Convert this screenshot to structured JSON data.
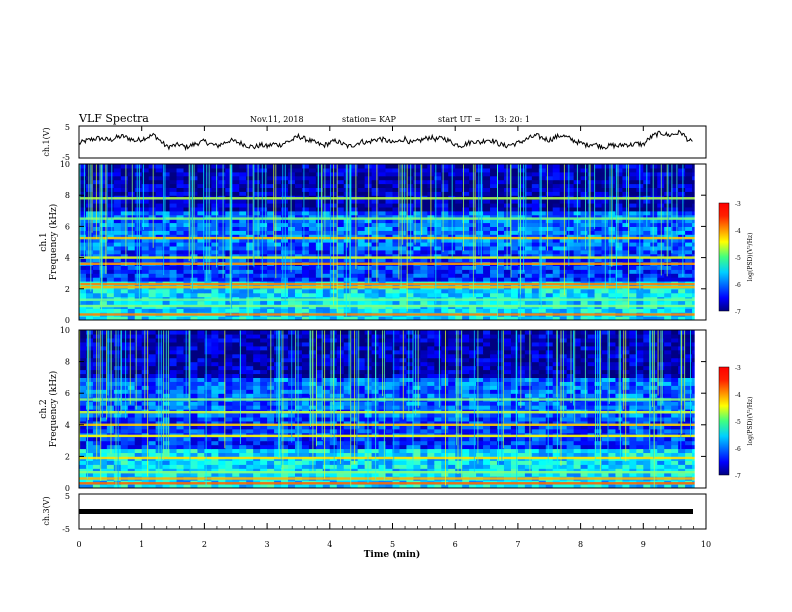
{
  "header": {
    "title": "VLF Spectra",
    "date": "Nov.11, 2018",
    "station": "station= KAP",
    "start_label": "start  UT =",
    "start_time": "13: 20: 1"
  },
  "chart_data": [
    {
      "type": "line",
      "name": "ch1-waveform-panel",
      "ylabel": "ch.1(V)",
      "ylim": [
        -5,
        5
      ],
      "yticks": [
        "5",
        "-5"
      ],
      "xlim": [
        0,
        10
      ],
      "x": [
        0.0,
        0.1,
        0.2,
        0.3,
        0.4,
        0.5,
        0.6,
        0.7,
        0.8,
        0.9,
        1.0,
        1.1,
        1.2,
        1.3,
        1.4,
        1.5,
        1.6,
        1.7,
        1.8,
        1.9,
        2.0,
        2.1,
        2.2,
        2.3,
        2.4,
        2.5,
        2.6,
        2.7,
        2.8,
        2.9,
        3.0,
        3.1,
        3.2,
        3.3,
        3.4,
        3.5,
        3.6,
        3.7,
        3.8,
        3.9,
        4.0,
        4.1,
        4.2,
        4.3,
        4.4,
        4.5,
        4.6,
        4.7,
        4.8,
        4.9,
        5.0,
        5.1,
        5.2,
        5.3,
        5.4,
        5.5,
        5.6,
        5.7,
        5.8,
        5.9,
        6.0,
        6.1,
        6.2,
        6.3,
        6.4,
        6.5,
        6.6,
        6.7,
        6.8,
        6.9,
        7.0,
        7.1,
        7.2,
        7.3,
        7.4,
        7.5,
        7.6,
        7.7,
        7.8,
        7.9,
        8.0,
        8.1,
        8.2,
        8.3,
        8.4,
        8.5,
        8.6,
        8.7,
        8.8,
        8.9,
        9.0,
        9.1,
        9.2,
        9.3,
        9.4,
        9.5,
        9.6,
        9.7,
        9.8
      ],
      "y": [
        -0.5,
        0.3,
        0.8,
        1.2,
        0.9,
        0.6,
        1.4,
        1.8,
        1.1,
        0.4,
        0.9,
        1.6,
        2.2,
        0.3,
        -1.5,
        -1.2,
        -0.8,
        -1.6,
        -1.0,
        -0.3,
        0.2,
        -0.6,
        -1.3,
        -0.4,
        0.5,
        0.1,
        -0.5,
        -1.2,
        -1.6,
        -0.9,
        -1.4,
        -0.6,
        -1.0,
        -0.1,
        0.6,
        1.8,
        1.0,
        0.3,
        -0.5,
        -1.1,
        -0.3,
        0.4,
        -0.6,
        -1.4,
        -0.8,
        0.2,
        -0.2,
        0.6,
        1.0,
        0.5,
        -0.3,
        0.2,
        1.1,
        -0.4,
        0.2,
        0.9,
        1.5,
        0.8,
        1.3,
        0.4,
        -0.7,
        -1.1,
        -0.4,
        0.3,
        -0.2,
        0.8,
        0.4,
        -0.6,
        -1.2,
        -0.8,
        -0.3,
        0.5,
        1.4,
        2.0,
        1.2,
        0.6,
        1.5,
        2.1,
        1.3,
        0.4,
        -0.4,
        -0.9,
        -0.5,
        -1.2,
        -1.5,
        -1.0,
        -1.3,
        -0.7,
        -0.9,
        -0.5,
        -0.8,
        1.2,
        2.4,
        2.8,
        2.1,
        2.5,
        3.1,
        1.0,
        -0.6
      ]
    },
    {
      "type": "heatmap",
      "name": "ch1-spectrogram",
      "ylabel": "ch.1",
      "ylabel2": "Frequency (kHz)",
      "ylim": [
        0,
        10
      ],
      "yticks": [
        "0",
        "2",
        "4",
        "6",
        "8",
        "10"
      ],
      "xlim": [
        0,
        10
      ],
      "bands_khz": [
        {
          "f": 0.35,
          "level": -4.0
        },
        {
          "f": 0.9,
          "level": -5.0
        },
        {
          "f": 1.3,
          "level": -5.1
        },
        {
          "f": 2.1,
          "level": -4.2
        },
        {
          "f": 2.3,
          "level": -4.0
        },
        {
          "f": 3.6,
          "level": -4.1
        },
        {
          "f": 4.0,
          "level": -4.6
        },
        {
          "f": 5.25,
          "level": -4.3
        },
        {
          "f": 6.5,
          "level": -5.0
        },
        {
          "f": 7.8,
          "level": -4.8
        }
      ],
      "colorbar": {
        "label": "log(PSD)(V²/Hz)",
        "ticks": [
          "-3",
          "-4",
          "-5",
          "-6",
          "-7"
        ],
        "range": [
          -7,
          -3
        ]
      }
    },
    {
      "type": "heatmap",
      "name": "ch2-spectrogram",
      "ylabel": "ch.2",
      "ylabel2": "Frequency (kHz)",
      "ylim": [
        0,
        10
      ],
      "yticks": [
        "0",
        "2",
        "4",
        "6",
        "8",
        "10"
      ],
      "xlim": [
        0,
        10
      ],
      "bands_khz": [
        {
          "f": 0.3,
          "level": -3.9
        },
        {
          "f": 0.6,
          "level": -4.2
        },
        {
          "f": 1.0,
          "level": -5.0
        },
        {
          "f": 1.9,
          "level": -4.4
        },
        {
          "f": 3.3,
          "level": -4.5
        },
        {
          "f": 4.0,
          "level": -4.3
        },
        {
          "f": 4.8,
          "level": -4.7
        },
        {
          "f": 5.6,
          "level": -5.0
        }
      ],
      "colorbar": {
        "label": "log(PSD)(V²/Hz)",
        "ticks": [
          "-3",
          "-4",
          "-5",
          "-6",
          "-7"
        ],
        "range": [
          -7,
          -3
        ]
      }
    },
    {
      "type": "line",
      "name": "ch3-waveform-panel",
      "ylabel": "ch.3(V)",
      "ylim": [
        -5,
        5
      ],
      "yticks": [
        "5",
        "-5"
      ],
      "xlim": [
        0,
        10
      ],
      "x": [
        0,
        9.8
      ],
      "y": [
        0,
        0
      ],
      "xlabel": "Time (min)",
      "xticks": [
        "0",
        "1",
        "2",
        "3",
        "4",
        "5",
        "6",
        "7",
        "8",
        "9",
        "10"
      ]
    }
  ]
}
